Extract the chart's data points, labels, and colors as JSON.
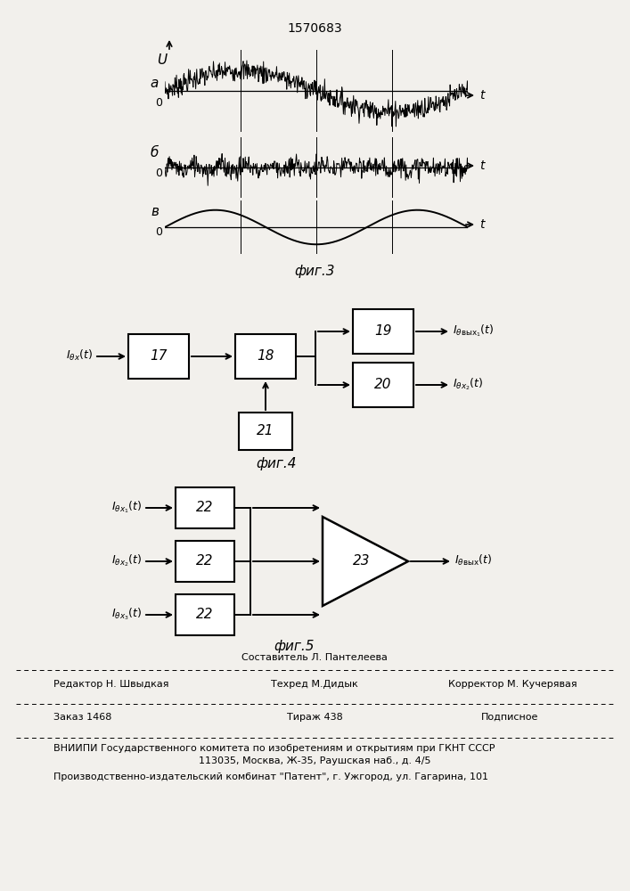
{
  "title": "1570683",
  "bg_color": "#f2f0ec",
  "fig3_label": "фиг.3",
  "fig4_label": "фиг.4",
  "fig5_label": "фиг.5",
  "footer_line1": "Составитель Л. Пантелеева",
  "footer_editor": "Редактор Н. Швыдкая",
  "footer_techred": "Техред М.Дидык",
  "footer_corrector": "Корректор М. Кучерявая",
  "footer_order": "Заказ 1468",
  "footer_tirazh": "Тираж 438",
  "footer_podpisnoe": "Подписное",
  "footer_vniip1": "ВНИИПИ Государственного комитета по изобретениям и открытиям при ГКНТ СССР",
  "footer_vniip2": "113035, Москва, Ж-35, Раушская наб., д. 4/5",
  "footer_patent": "Производственно-издательский комбинат \"Патент\", г. Ужгород, ул. Гагарина, 101"
}
